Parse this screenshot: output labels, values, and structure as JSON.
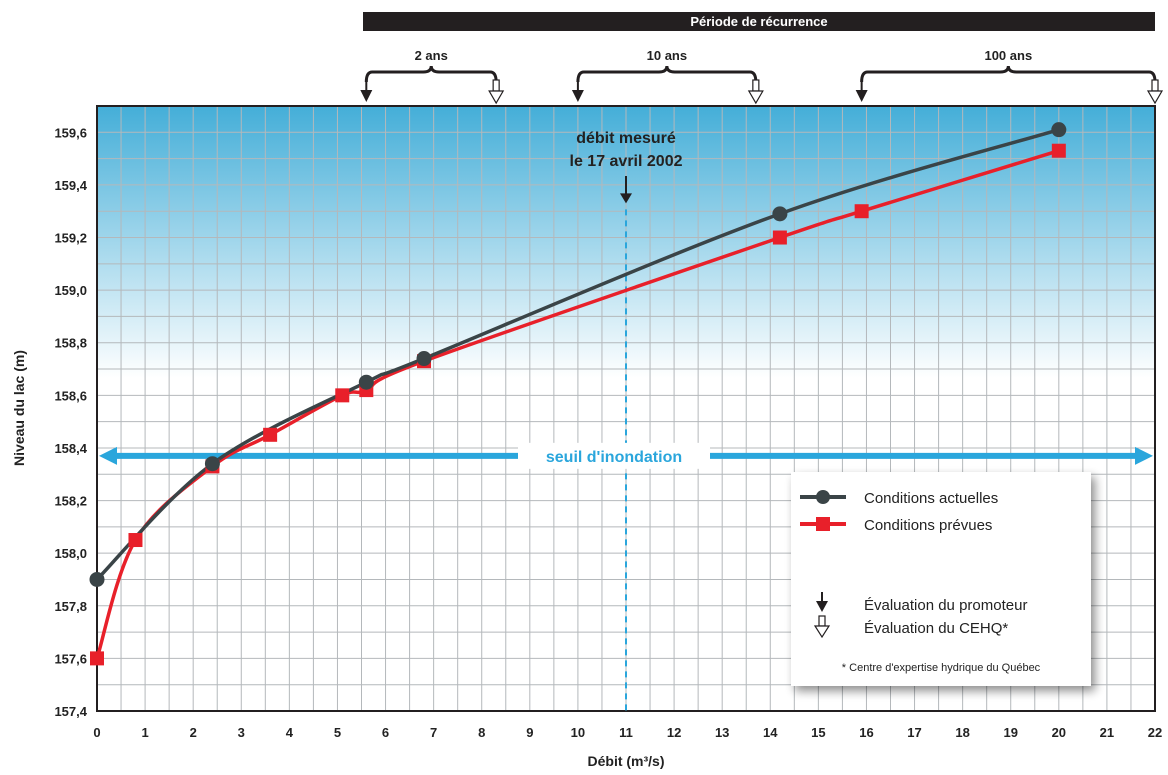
{
  "chart_data": {
    "type": "line",
    "band_title": "Période de récurrence",
    "xlabel": "Débit (m³/s)",
    "ylabel": "Niveau du lac (m)",
    "xlim": [
      0,
      22
    ],
    "ylim": [
      157.4,
      159.7
    ],
    "x_ticks": [
      0,
      1,
      2,
      3,
      4,
      5,
      6,
      7,
      8,
      9,
      10,
      11,
      12,
      13,
      14,
      15,
      16,
      17,
      18,
      19,
      20,
      21,
      22
    ],
    "y_ticks": [
      {
        "value": 157.4,
        "label": "157,4"
      },
      {
        "value": 157.6,
        "label": "157,6"
      },
      {
        "value": 157.8,
        "label": "157,8"
      },
      {
        "value": 158.0,
        "label": "158,0"
      },
      {
        "value": 158.2,
        "label": "158,2"
      },
      {
        "value": 158.4,
        "label": "158,4"
      },
      {
        "value": 158.6,
        "label": "158,6"
      },
      {
        "value": 158.8,
        "label": "158,8"
      },
      {
        "value": 159.0,
        "label": "159,0"
      },
      {
        "value": 159.2,
        "label": "159,2"
      },
      {
        "value": 159.4,
        "label": "159,4"
      },
      {
        "value": 159.6,
        "label": "159,6"
      }
    ],
    "grid": true,
    "series": [
      {
        "name": "Conditions actuelles",
        "color": "#3a4447",
        "marker": "circle",
        "x": [
          0,
          2.4,
          5.6,
          6.8,
          14.2,
          20
        ],
        "y": [
          157.9,
          158.34,
          158.65,
          158.74,
          159.29,
          159.61
        ]
      },
      {
        "name": "Conditions prévues",
        "color": "#e8202a",
        "marker": "square",
        "x": [
          0,
          0.8,
          2.4,
          3.6,
          5.1,
          5.6,
          6.8,
          14.2,
          15.9,
          20
        ],
        "y": [
          157.6,
          158.05,
          158.33,
          158.45,
          158.6,
          158.62,
          158.73,
          159.2,
          159.3,
          159.53
        ]
      }
    ],
    "threshold": {
      "label": "seuil d'inondation",
      "y": 158.37,
      "color": "#2aa6dc"
    },
    "measured": {
      "line1": "débit mesuré",
      "line2": "le 17 avril 2002",
      "x": 11,
      "arrow_tip_y": 159.33
    },
    "recurrence": [
      {
        "label": "2 ans",
        "promoteur_x": 5.6,
        "cehq_x": 8.3
      },
      {
        "label": "10 ans",
        "promoteur_x": 10.0,
        "cehq_x": 13.7
      },
      {
        "label": "100 ans",
        "promoteur_x": 15.9,
        "cehq_x": 22.0
      }
    ],
    "legend": {
      "placement": "bottom-right",
      "actual_label": "Conditions actuelles",
      "planned_label": "Conditions prévues",
      "promoteur_label": "Évaluation du promoteur",
      "cehq_label": "Évaluation du CEHQ*",
      "note": "* Centre d'expertise hydrique du Québec"
    },
    "colors": {
      "background_top": "#44aed8",
      "background_bottom": "#ffffff",
      "grid": "#b4b8bb",
      "band": "#231f20"
    }
  }
}
